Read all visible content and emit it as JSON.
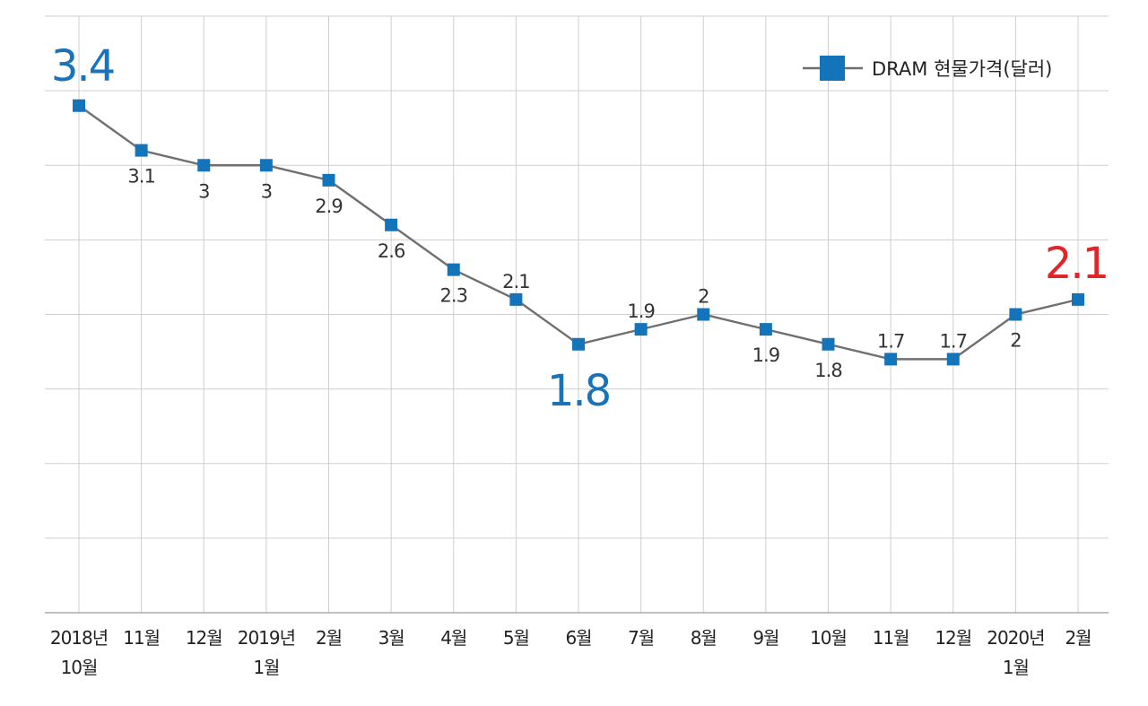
{
  "chart_data": {
    "type": "line",
    "title": "",
    "xlabel": "",
    "ylabel": "",
    "ylim": [
      0,
      4
    ],
    "grid": true,
    "legend": {
      "position": "top-right",
      "entries": [
        "DRAM 현물가격(달러)"
      ]
    },
    "categories": [
      [
        "2018년",
        "10월"
      ],
      [
        "11월"
      ],
      [
        "12월"
      ],
      [
        "2019년",
        "1월"
      ],
      [
        "2월"
      ],
      [
        "3월"
      ],
      [
        "4월"
      ],
      [
        "5월"
      ],
      [
        "6월"
      ],
      [
        "7월"
      ],
      [
        "8월"
      ],
      [
        "9월"
      ],
      [
        "10월"
      ],
      [
        "11월"
      ],
      [
        "12월"
      ],
      [
        "2020년",
        "1월"
      ],
      [
        "2월"
      ]
    ],
    "series": [
      {
        "name": "DRAM 현물가격(달러)",
        "color": "#1474ba",
        "line_color": "#6f6f6f",
        "values": [
          3.4,
          3.1,
          3,
          3,
          2.9,
          2.6,
          2.3,
          2.1,
          1.8,
          1.9,
          2,
          1.9,
          1.8,
          1.7,
          1.7,
          2,
          2.1
        ]
      }
    ],
    "data_labels": [
      "3.4",
      "3.1",
      "3",
      "3",
      "2.9",
      "2.6",
      "2.3",
      "2.1",
      "1.8",
      "1.9",
      "2",
      "1.9",
      "1.8",
      "1.7",
      "1.7",
      "2",
      "2.1"
    ],
    "label_placement": [
      "above",
      "below",
      "below",
      "below",
      "below",
      "below",
      "below",
      "above",
      "below",
      "above",
      "above",
      "below",
      "below",
      "above",
      "above",
      "below",
      "above"
    ],
    "highlight_indices": [
      0,
      8,
      16
    ],
    "highlight_colors": [
      "#1a73b8",
      "#1a73b8",
      "#e0262b"
    ]
  }
}
